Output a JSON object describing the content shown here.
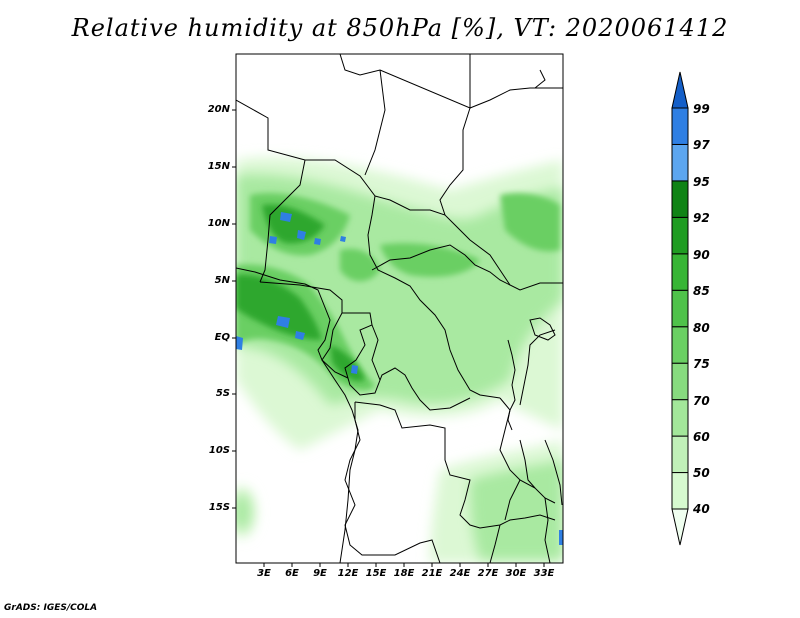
{
  "title": "Relative humidity at 850hPa [%], VT: 2020061412",
  "credit": "GrADS: IGES/COLA",
  "map": {
    "lat_labels": [
      "20N",
      "15N",
      "10N",
      "5N",
      "EQ",
      "5S",
      "10S",
      "15S"
    ],
    "lon_labels": [
      "3E",
      "6E",
      "9E",
      "12E",
      "15E",
      "18E",
      "21E",
      "24E",
      "27E",
      "30E",
      "33E"
    ]
  },
  "colorbar": {
    "levels": [
      "40",
      "50",
      "60",
      "70",
      "75",
      "80",
      "85",
      "90",
      "92",
      "95",
      "97",
      "99"
    ],
    "colors": [
      "#f0fff0",
      "#d7f9d0",
      "#c0f0b8",
      "#a3e79a",
      "#87db7f",
      "#6acf63",
      "#4fc24a",
      "#37b535",
      "#1f9c22",
      "#0f8315",
      "#5da6ef",
      "#2f7fe3",
      "#145fc8"
    ],
    "extensions": "both"
  }
}
